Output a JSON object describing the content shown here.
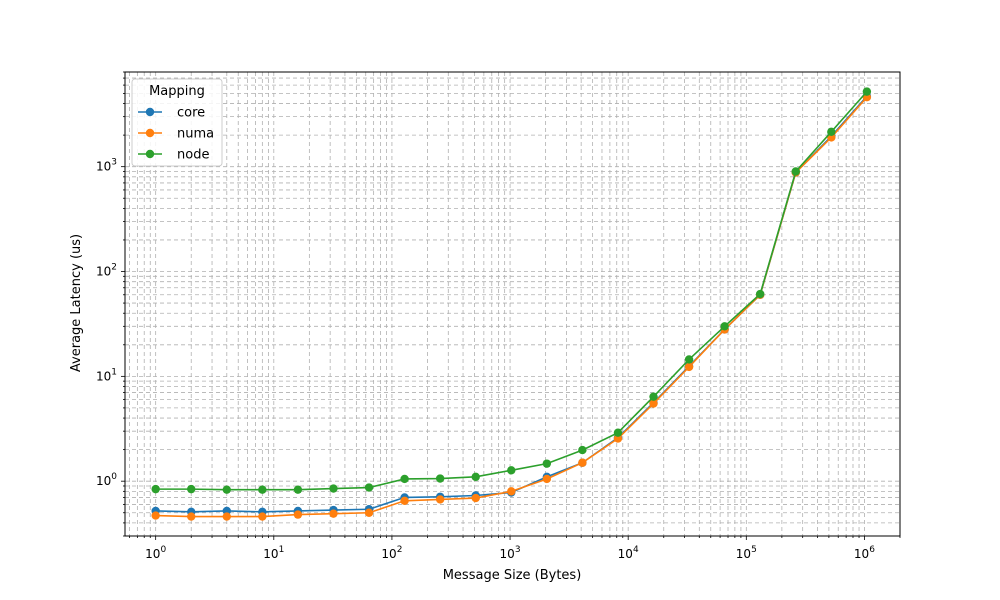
{
  "chart_data": {
    "type": "line",
    "title": "",
    "xlabel": "Message Size (Bytes)",
    "ylabel": "Average Latency (us)",
    "xscale": "log",
    "yscale": "log",
    "xlim": [
      0.55,
      2000000
    ],
    "ylim": [
      0.3,
      8000
    ],
    "grid": true,
    "legend": {
      "title": "Mapping",
      "placement": "top-left"
    },
    "x": [
      1,
      2,
      4,
      8,
      16,
      32,
      64,
      128,
      256,
      512,
      1024,
      2048,
      4096,
      8192,
      16384,
      32768,
      65536,
      131072,
      262144,
      524288,
      1048576
    ],
    "x_ticks": [
      {
        "value": 1,
        "base": "10",
        "exp": "0"
      },
      {
        "value": 10,
        "base": "10",
        "exp": "1"
      },
      {
        "value": 100,
        "base": "10",
        "exp": "2"
      },
      {
        "value": 1000,
        "base": "10",
        "exp": "3"
      },
      {
        "value": 10000,
        "base": "10",
        "exp": "4"
      },
      {
        "value": 100000,
        "base": "10",
        "exp": "5"
      },
      {
        "value": 1000000,
        "base": "10",
        "exp": "6"
      }
    ],
    "y_ticks": [
      {
        "value": 1,
        "base": "10",
        "exp": "0"
      },
      {
        "value": 10,
        "base": "10",
        "exp": "1"
      },
      {
        "value": 100,
        "base": "10",
        "exp": "2"
      },
      {
        "value": 1000,
        "base": "10",
        "exp": "3"
      }
    ],
    "series": [
      {
        "name": "core",
        "color": "#1f77b4",
        "values": [
          0.52,
          0.51,
          0.52,
          0.51,
          0.52,
          0.53,
          0.54,
          0.7,
          0.71,
          0.73,
          0.78,
          1.1,
          1.5,
          2.6,
          5.6,
          12.5,
          28.0,
          60.0,
          880,
          1950,
          4700
        ]
      },
      {
        "name": "numa",
        "color": "#ff7f0e",
        "values": [
          0.47,
          0.46,
          0.46,
          0.46,
          0.48,
          0.49,
          0.5,
          0.65,
          0.67,
          0.69,
          0.8,
          1.05,
          1.5,
          2.55,
          5.5,
          12.3,
          28.0,
          60.0,
          880,
          1900,
          4600
        ]
      },
      {
        "name": "node",
        "color": "#2ca02c",
        "values": [
          0.84,
          0.84,
          0.83,
          0.83,
          0.83,
          0.85,
          0.87,
          1.05,
          1.06,
          1.1,
          1.27,
          1.47,
          1.98,
          2.9,
          6.4,
          14.5,
          30.0,
          61.0,
          900,
          2150,
          5200
        ]
      }
    ]
  }
}
